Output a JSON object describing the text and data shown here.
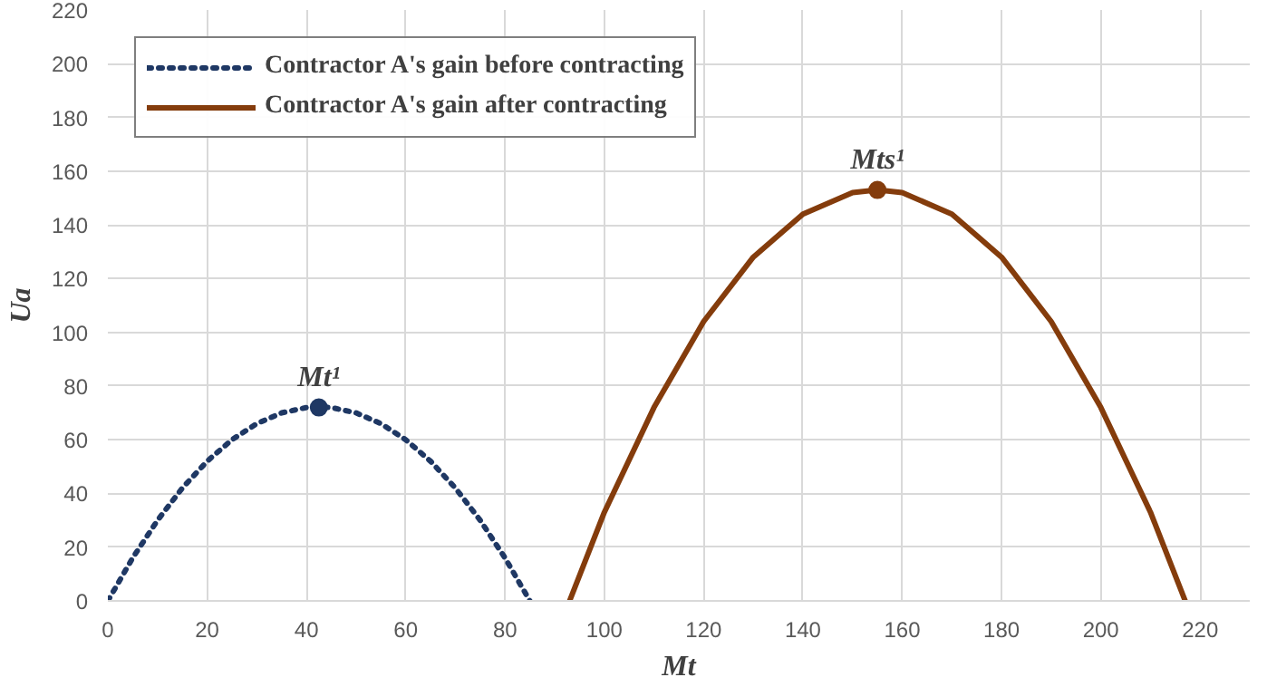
{
  "chart_data": {
    "type": "line",
    "xlabel": "Mt",
    "ylabel": "Ua",
    "xlim": [
      0,
      230
    ],
    "ylim": [
      0,
      220
    ],
    "xticks": [
      0,
      20,
      40,
      60,
      80,
      100,
      120,
      140,
      160,
      180,
      200,
      220
    ],
    "yticks": [
      0,
      20,
      40,
      60,
      80,
      100,
      120,
      140,
      160,
      180,
      200,
      220
    ],
    "grid": true,
    "legend": "top left",
    "marker": "none",
    "series": [
      {
        "name": "Contractor A's gain before contracting",
        "color": "#1f3864",
        "line_style": "dotted",
        "x": [
          0,
          5,
          10,
          15,
          20,
          25,
          30,
          35,
          40,
          42.5,
          45,
          50,
          55,
          60,
          65,
          70,
          75,
          80,
          85
        ],
        "values": [
          0,
          16,
          30,
          42,
          52,
          60,
          66,
          70,
          72,
          72,
          72,
          70,
          66,
          60,
          52,
          42,
          30,
          16,
          0
        ]
      },
      {
        "name": "Contractor A's gain after contracting",
        "color": "#843c0c",
        "line_style": "solid",
        "x": [
          93,
          100,
          110,
          120,
          130,
          140,
          150,
          155,
          160,
          170,
          180,
          190,
          200,
          210,
          217
        ],
        "values": [
          0,
          33,
          72,
          104,
          128,
          144,
          152,
          153,
          152,
          144,
          128,
          104,
          72,
          33,
          0
        ]
      },
      {
        "type": "scatter",
        "marker": "circle",
        "color": "#1f3864",
        "x": [
          42.5
        ],
        "values": [
          72
        ]
      },
      {
        "type": "scatter",
        "marker": "circle",
        "color": "#843c0c",
        "x": [
          155
        ],
        "values": [
          153
        ]
      }
    ],
    "annotations": [
      {
        "text": "Mt¹",
        "x": 42.5,
        "y": 72
      },
      {
        "text": "Mts¹",
        "x": 155,
        "y": 153
      }
    ]
  }
}
